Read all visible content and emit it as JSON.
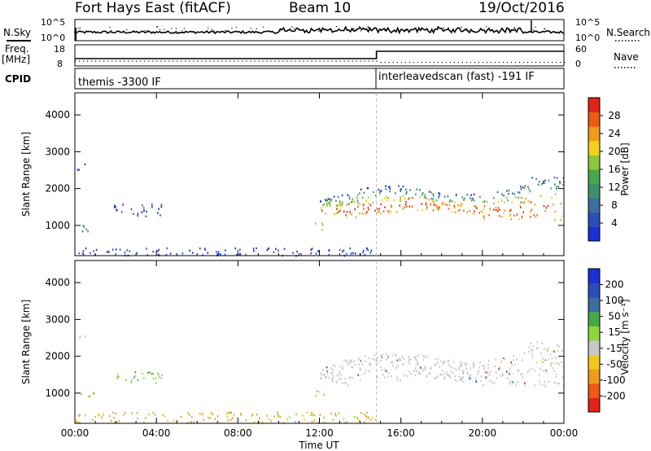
{
  "header": {
    "station": "Fort Hays East (fitACF)",
    "beam": "Beam 10",
    "date": "19/Oct/2016"
  },
  "strips": {
    "nsky_label": "N.Sky",
    "nsky_ticks": [
      "10^5",
      "10^0"
    ],
    "nsearch_label": "N.Search",
    "nsearch_ticks": [
      "10^5",
      "10^0"
    ],
    "freq_label": "Freq.",
    "freq_unit": "[MHz]",
    "freq_ticks": [
      "18",
      "8"
    ],
    "nave_label": "Nave",
    "nave_ticks": [
      "60",
      "0"
    ],
    "cpid_label": "CPID",
    "cpid_segments": [
      "themis -3300 IF",
      "interleavedscan (fast) -191 IF"
    ]
  },
  "chart_data": [
    {
      "type": "heatmap",
      "panel": "power",
      "xlabel": "",
      "ylabel": "Slant Range [km]",
      "x_ticks": [
        "00:00",
        "04:00",
        "08:00",
        "12:00",
        "16:00",
        "20:00",
        "00:00"
      ],
      "x_range_hours": [
        0,
        24
      ],
      "y_ticks": [
        1000,
        2000,
        3000,
        4000
      ],
      "y_range_km": [
        180,
        4600
      ],
      "colorbar": {
        "label": "Power [dB]",
        "ticks": [
          "4",
          "8",
          "12",
          "16",
          "20",
          "24",
          "28"
        ],
        "range": [
          0,
          32
        ],
        "colors": [
          "#1b2fd6",
          "#2b4fb8",
          "#3c6fa0",
          "#3f8f6a",
          "#47a84a",
          "#8ec63c",
          "#f2d21b",
          "#f29a1a",
          "#ee5a12",
          "#e2231a"
        ]
      },
      "mode_change_hour": 14.8,
      "echo_regions": [
        {
          "t_start": 0.0,
          "t_end": 14.8,
          "range_low": 200,
          "range_high": 420,
          "level": "low"
        },
        {
          "t_start": 0.1,
          "t_end": 0.5,
          "range_low": 2500,
          "range_high": 2800,
          "level": "low"
        },
        {
          "t_start": 0.2,
          "t_end": 1.0,
          "range_low": 850,
          "range_high": 1050,
          "level": "low-mid"
        },
        {
          "t_start": 1.8,
          "t_end": 4.3,
          "range_low": 1250,
          "range_high": 1600,
          "level": "low"
        },
        {
          "t_start": 12.0,
          "t_end": 24.0,
          "range_low": 1200,
          "range_high": 2250,
          "level": "high"
        },
        {
          "t_start": 11.7,
          "t_end": 12.2,
          "range_low": 900,
          "range_high": 1150,
          "level": "mid"
        }
      ]
    },
    {
      "type": "heatmap",
      "panel": "velocity",
      "xlabel": "Time UT",
      "ylabel": "Slant Range [km]",
      "x_ticks": [
        "00:00",
        "04:00",
        "08:00",
        "12:00",
        "16:00",
        "20:00",
        "00:00"
      ],
      "x_range_hours": [
        0,
        24
      ],
      "y_ticks": [
        1000,
        2000,
        3000,
        4000
      ],
      "y_range_km": [
        180,
        4600
      ],
      "colorbar": {
        "label": "Velocity [m s⁻¹]",
        "ticks": [
          "200",
          "100",
          "50",
          "15",
          "-15",
          "-50",
          "-100",
          "-200"
        ],
        "range": [
          -250,
          250
        ],
        "colors": [
          "#e2231a",
          "#ee5a12",
          "#f29a1a",
          "#f2c81b",
          "#c8c8c8",
          "#8ed63c",
          "#47a84a",
          "#3c6fa0",
          "#2b4fb8",
          "#1b2fd6"
        ]
      },
      "echo_regions": [
        {
          "t_start": 0.0,
          "t_end": 14.8,
          "range_low": 200,
          "range_high": 500,
          "velocity_class": "negative"
        },
        {
          "t_start": 0.1,
          "t_end": 0.5,
          "range_low": 2500,
          "range_high": 2800,
          "velocity_class": "ground"
        },
        {
          "t_start": 0.2,
          "t_end": 1.0,
          "range_low": 850,
          "range_high": 1050,
          "velocity_class": "positive"
        },
        {
          "t_start": 1.8,
          "t_end": 4.3,
          "range_low": 1250,
          "range_high": 1600,
          "velocity_class": "positive"
        },
        {
          "t_start": 12.0,
          "t_end": 24.0,
          "range_low": 1200,
          "range_high": 2250,
          "velocity_class": "ground"
        },
        {
          "t_start": 11.7,
          "t_end": 12.2,
          "range_low": 900,
          "range_high": 1150,
          "velocity_class": "negative"
        }
      ]
    }
  ]
}
